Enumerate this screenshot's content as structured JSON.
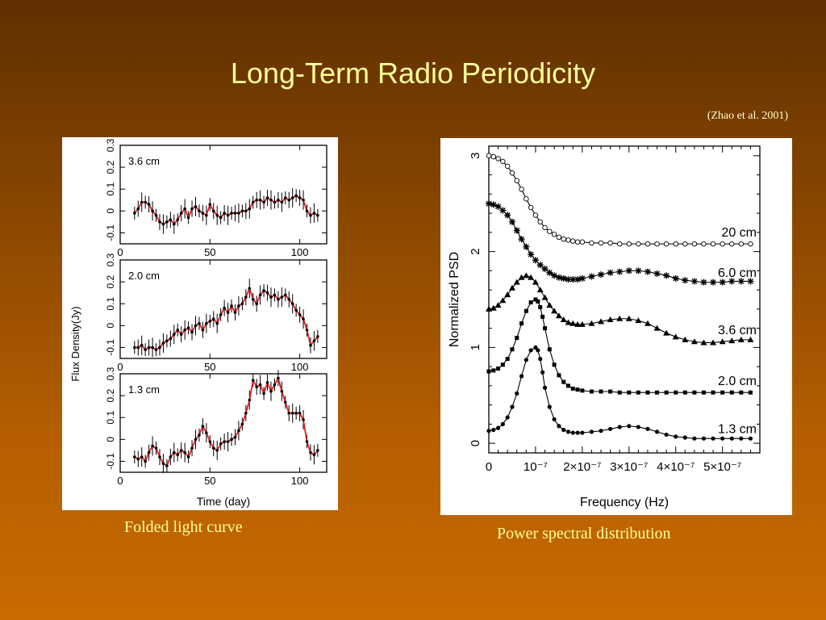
{
  "slide": {
    "title": "Long-Term Radio Periodicity",
    "citation": "(Zhao et al. 2001)",
    "left_caption": "Folded light curve",
    "right_caption": "Power spectral distribution",
    "colors": {
      "title": "#ffff99",
      "caption": "#ffff99",
      "curve": "#e02020"
    }
  },
  "chart_data": [
    {
      "type": "line",
      "ylabel": "Flux Density(Jy)",
      "xlabel": "Time (day)",
      "xlim": [
        0,
        115
      ],
      "ylim": [
        -0.15,
        0.3
      ],
      "x_ticks": [
        0,
        50,
        100
      ],
      "y_ticks": [
        "-0.1",
        "0",
        "0.1",
        "0.2",
        "0.3"
      ],
      "grid": false,
      "panels": [
        {
          "name": "3.6 cm",
          "x": [
            8,
            10,
            12,
            14,
            16,
            18,
            20,
            22,
            24,
            26,
            28,
            30,
            32,
            34,
            36,
            38,
            40,
            42,
            44,
            46,
            48,
            50,
            52,
            54,
            56,
            58,
            60,
            62,
            64,
            66,
            68,
            70,
            72,
            74,
            76,
            78,
            80,
            82,
            84,
            86,
            88,
            90,
            92,
            94,
            96,
            98,
            100,
            102,
            104,
            106,
            108,
            110
          ],
          "y": [
            -0.01,
            0.01,
            0.04,
            0.04,
            0.03,
            0.0,
            -0.02,
            -0.05,
            -0.06,
            -0.05,
            -0.04,
            -0.06,
            -0.04,
            -0.01,
            0.01,
            -0.03,
            0.01,
            0.02,
            0.0,
            -0.01,
            -0.02,
            0.03,
            0.0,
            -0.02,
            -0.03,
            -0.01,
            -0.02,
            -0.01,
            -0.01,
            -0.01,
            0.0,
            0.0,
            0.01,
            0.04,
            0.05,
            0.05,
            0.04,
            0.06,
            0.05,
            0.04,
            0.05,
            0.04,
            0.06,
            0.05,
            0.06,
            0.07,
            0.06,
            0.05,
            0.0,
            -0.02,
            -0.01,
            -0.02
          ]
        },
        {
          "name": "2.0 cm",
          "x": [
            8,
            10,
            12,
            14,
            16,
            18,
            20,
            22,
            24,
            26,
            28,
            30,
            32,
            34,
            36,
            38,
            40,
            42,
            44,
            46,
            48,
            50,
            52,
            54,
            56,
            58,
            60,
            62,
            64,
            66,
            68,
            70,
            72,
            74,
            76,
            78,
            80,
            82,
            84,
            86,
            88,
            90,
            92,
            94,
            96,
            98,
            100,
            102,
            104,
            106,
            108,
            110
          ],
          "y": [
            -0.1,
            -0.1,
            -0.09,
            -0.11,
            -0.1,
            -0.1,
            -0.11,
            -0.1,
            -0.08,
            -0.07,
            -0.06,
            -0.04,
            -0.02,
            -0.04,
            -0.02,
            -0.01,
            -0.03,
            0.0,
            0.01,
            -0.02,
            0.01,
            0.02,
            0.03,
            0.01,
            0.05,
            0.08,
            0.06,
            0.09,
            0.06,
            0.09,
            0.1,
            0.13,
            0.17,
            0.12,
            0.1,
            0.14,
            0.16,
            0.15,
            0.13,
            0.14,
            0.12,
            0.13,
            0.14,
            0.12,
            0.1,
            0.07,
            0.05,
            0.03,
            -0.02,
            -0.09,
            -0.07,
            -0.05
          ]
        },
        {
          "name": "1.3 cm",
          "x": [
            8,
            10,
            12,
            14,
            16,
            18,
            20,
            22,
            24,
            26,
            28,
            30,
            32,
            34,
            36,
            38,
            40,
            42,
            44,
            46,
            48,
            50,
            52,
            54,
            56,
            58,
            60,
            62,
            64,
            66,
            68,
            70,
            72,
            74,
            76,
            78,
            80,
            82,
            84,
            86,
            88,
            90,
            92,
            94,
            96,
            98,
            100,
            102,
            104,
            106,
            108,
            110
          ],
          "y": [
            -0.08,
            -0.09,
            -0.08,
            -0.1,
            -0.06,
            -0.03,
            -0.04,
            -0.08,
            -0.11,
            -0.12,
            -0.08,
            -0.06,
            -0.07,
            -0.05,
            -0.06,
            -0.08,
            -0.04,
            0.0,
            0.02,
            0.06,
            0.03,
            -0.01,
            -0.04,
            -0.05,
            -0.02,
            -0.01,
            -0.01,
            0.0,
            0.01,
            0.04,
            0.07,
            0.12,
            0.18,
            0.27,
            0.24,
            0.25,
            0.21,
            0.26,
            0.22,
            0.25,
            0.28,
            0.22,
            0.17,
            0.12,
            0.12,
            0.12,
            0.12,
            0.09,
            -0.01,
            -0.06,
            -0.07,
            -0.05
          ]
        }
      ]
    },
    {
      "type": "line",
      "ylabel": "Normalized PSD",
      "xlabel": "Frequency (Hz)",
      "xlim": [
        0,
        5.8e-07
      ],
      "ylim": [
        -0.1,
        3.1
      ],
      "x_tick_values": [
        0,
        1e-07,
        2e-07,
        3e-07,
        4e-07,
        5e-07
      ],
      "x_tick_labels": [
        "0",
        "10⁻⁷",
        "2×10⁻⁷",
        "3×10⁻⁷",
        "4×10⁻⁷",
        "5×10⁻⁷"
      ],
      "y_ticks": [
        0,
        1,
        2,
        3
      ],
      "grid": false,
      "series": [
        {
          "name": "20 cm",
          "marker": "circle",
          "x": [
            0,
            1e-08,
            2e-08,
            3e-08,
            4e-08,
            5e-08,
            6e-08,
            7e-08,
            8e-08,
            9e-08,
            1e-07,
            1.1e-07,
            1.2e-07,
            1.3e-07,
            1.4e-07,
            1.5e-07,
            1.6e-07,
            1.7e-07,
            1.8e-07,
            1.9e-07,
            2e-07,
            2.2e-07,
            2.4e-07,
            2.6e-07,
            2.8e-07,
            3e-07,
            3.2e-07,
            3.4e-07,
            3.6e-07,
            3.8e-07,
            4e-07,
            4.2e-07,
            4.4e-07,
            4.6e-07,
            4.8e-07,
            5e-07,
            5.2e-07,
            5.4e-07,
            5.6e-07
          ],
          "y": [
            3.0,
            2.99,
            2.97,
            2.94,
            2.89,
            2.82,
            2.74,
            2.65,
            2.55,
            2.46,
            2.38,
            2.31,
            2.25,
            2.21,
            2.18,
            2.15,
            2.13,
            2.12,
            2.11,
            2.1,
            2.1,
            2.09,
            2.09,
            2.09,
            2.08,
            2.08,
            2.08,
            2.08,
            2.08,
            2.08,
            2.08,
            2.08,
            2.08,
            2.08,
            2.08,
            2.08,
            2.08,
            2.08,
            2.08
          ]
        },
        {
          "name": "6.0 cm",
          "marker": "star",
          "x": [
            0,
            1e-08,
            2e-08,
            3e-08,
            4e-08,
            5e-08,
            6e-08,
            7e-08,
            8e-08,
            9e-08,
            1e-07,
            1.1e-07,
            1.2e-07,
            1.3e-07,
            1.4e-07,
            1.5e-07,
            1.6e-07,
            1.7e-07,
            1.8e-07,
            1.9e-07,
            2e-07,
            2.2e-07,
            2.4e-07,
            2.6e-07,
            2.8e-07,
            3e-07,
            3.2e-07,
            3.4e-07,
            3.6e-07,
            3.8e-07,
            4e-07,
            4.2e-07,
            4.4e-07,
            4.6e-07,
            4.8e-07,
            5e-07,
            5.2e-07,
            5.4e-07,
            5.6e-07
          ],
          "y": [
            2.5,
            2.49,
            2.47,
            2.43,
            2.38,
            2.31,
            2.22,
            2.13,
            2.05,
            1.97,
            1.91,
            1.86,
            1.82,
            1.78,
            1.75,
            1.73,
            1.72,
            1.71,
            1.71,
            1.71,
            1.72,
            1.74,
            1.76,
            1.78,
            1.79,
            1.8,
            1.8,
            1.79,
            1.77,
            1.75,
            1.72,
            1.7,
            1.69,
            1.68,
            1.68,
            1.68,
            1.69,
            1.69,
            1.69
          ]
        },
        {
          "name": "3.6 cm",
          "marker": "triangle",
          "x": [
            0,
            1e-08,
            2e-08,
            3e-08,
            4e-08,
            5e-08,
            6e-08,
            7e-08,
            8e-08,
            9e-08,
            1e-07,
            1.1e-07,
            1.2e-07,
            1.3e-07,
            1.4e-07,
            1.5e-07,
            1.6e-07,
            1.7e-07,
            1.8e-07,
            1.9e-07,
            2e-07,
            2.2e-07,
            2.4e-07,
            2.6e-07,
            2.8e-07,
            3e-07,
            3.2e-07,
            3.4e-07,
            3.6e-07,
            3.8e-07,
            4e-07,
            4.2e-07,
            4.4e-07,
            4.6e-07,
            4.8e-07,
            5e-07,
            5.2e-07,
            5.4e-07,
            5.6e-07
          ],
          "y": [
            1.4,
            1.41,
            1.44,
            1.49,
            1.55,
            1.62,
            1.68,
            1.73,
            1.75,
            1.73,
            1.68,
            1.6,
            1.52,
            1.44,
            1.38,
            1.33,
            1.29,
            1.26,
            1.25,
            1.24,
            1.24,
            1.25,
            1.27,
            1.29,
            1.3,
            1.3,
            1.28,
            1.25,
            1.2,
            1.15,
            1.11,
            1.08,
            1.06,
            1.05,
            1.05,
            1.06,
            1.07,
            1.08,
            1.08
          ]
        },
        {
          "name": "2.0 cm",
          "marker": "square",
          "x": [
            0,
            1e-08,
            2e-08,
            3e-08,
            4e-08,
            5e-08,
            6e-08,
            7e-08,
            8e-08,
            9e-08,
            1e-07,
            1.05e-07,
            1.1e-07,
            1.15e-07,
            1.2e-07,
            1.3e-07,
            1.4e-07,
            1.5e-07,
            1.6e-07,
            1.7e-07,
            1.8e-07,
            1.9e-07,
            2e-07,
            2.2e-07,
            2.4e-07,
            2.6e-07,
            2.8e-07,
            3e-07,
            3.2e-07,
            3.4e-07,
            3.6e-07,
            3.8e-07,
            4e-07,
            4.2e-07,
            4.4e-07,
            4.6e-07,
            4.8e-07,
            5e-07,
            5.2e-07,
            5.4e-07,
            5.6e-07
          ],
          "y": [
            0.75,
            0.76,
            0.78,
            0.82,
            0.88,
            0.98,
            1.1,
            1.25,
            1.38,
            1.47,
            1.5,
            1.48,
            1.42,
            1.32,
            1.2,
            0.98,
            0.82,
            0.71,
            0.64,
            0.6,
            0.57,
            0.56,
            0.55,
            0.54,
            0.54,
            0.54,
            0.53,
            0.53,
            0.53,
            0.53,
            0.53,
            0.53,
            0.53,
            0.53,
            0.53,
            0.53,
            0.53,
            0.53,
            0.53,
            0.53,
            0.53
          ]
        },
        {
          "name": "1.3 cm",
          "marker": "dot",
          "x": [
            0,
            1e-08,
            2e-08,
            3e-08,
            4e-08,
            5e-08,
            6e-08,
            7e-08,
            8e-08,
            9e-08,
            1e-07,
            1.05e-07,
            1.1e-07,
            1.15e-07,
            1.2e-07,
            1.3e-07,
            1.4e-07,
            1.5e-07,
            1.6e-07,
            1.7e-07,
            1.8e-07,
            1.9e-07,
            2e-07,
            2.2e-07,
            2.4e-07,
            2.6e-07,
            2.8e-07,
            3e-07,
            3.2e-07,
            3.4e-07,
            3.6e-07,
            3.8e-07,
            4e-07,
            4.2e-07,
            4.4e-07,
            4.6e-07,
            4.8e-07,
            5e-07,
            5.2e-07,
            5.4e-07,
            5.6e-07
          ],
          "y": [
            0.13,
            0.14,
            0.16,
            0.2,
            0.27,
            0.38,
            0.52,
            0.7,
            0.87,
            0.97,
            1.0,
            0.97,
            0.88,
            0.74,
            0.58,
            0.38,
            0.25,
            0.18,
            0.14,
            0.12,
            0.11,
            0.11,
            0.11,
            0.12,
            0.13,
            0.15,
            0.17,
            0.18,
            0.17,
            0.15,
            0.12,
            0.09,
            0.07,
            0.06,
            0.05,
            0.05,
            0.05,
            0.05,
            0.05,
            0.05,
            0.05
          ]
        }
      ]
    }
  ]
}
